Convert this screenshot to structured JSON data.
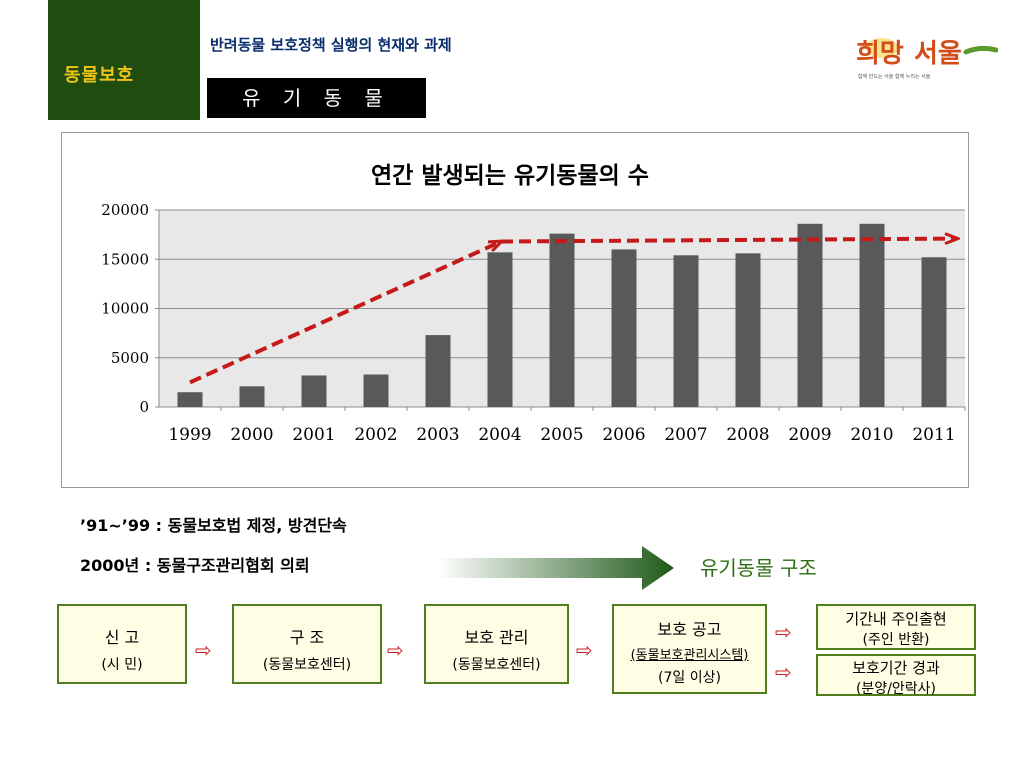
{
  "header": {
    "side_tab": "동물보호",
    "title": "반려동물 보호정책 실행의 현재와 과제",
    "section": "유 기 동 물"
  },
  "logo": {
    "name": "희망서울",
    "tagline": "함께 만드는 서울 함께 누리는 서울"
  },
  "chart_data": {
    "type": "bar",
    "title": "연간 발생되는 유기동물의 수",
    "categories": [
      "1999",
      "2000",
      "2001",
      "2002",
      "2003",
      "2004",
      "2005",
      "2006",
      "2007",
      "2008",
      "2009",
      "2010",
      "2011"
    ],
    "values": [
      1500,
      2100,
      3200,
      3300,
      7300,
      15700,
      17600,
      16000,
      15400,
      15600,
      18600,
      18600,
      15200
    ],
    "ylim": [
      0,
      20000
    ],
    "yticks": [
      0,
      5000,
      10000,
      15000,
      20000
    ],
    "ytick_labels": [
      "0",
      "5000",
      "10000",
      "15000",
      "20000"
    ],
    "grid": true,
    "bar_color": "#595959",
    "plot_bg": "#e8e8e8",
    "trend_color": "#c41a1a"
  },
  "notes": {
    "line1": "’91~’99 : 동물보호법 제정, 방견단속",
    "line2": "2000년 : 동물구조관리협회 의뢰",
    "rescue_label": "유기동물  구조"
  },
  "flow": {
    "report": {
      "line1": "신   고",
      "line2": "(시   민)"
    },
    "rescue": {
      "line1": "구   조",
      "line2": "(동물보호센터)"
    },
    "care": {
      "line1": "보호  관리",
      "line2": "(동물보호센터)"
    },
    "notice": {
      "line1": "보호  공고",
      "line2": "(동물보호관리시스템)",
      "line3": "(7일 이상)"
    },
    "owner": {
      "line1": "기간내  주인출현",
      "line2": "(주인  반환)"
    },
    "expire": {
      "line1": "보호기간  경과",
      "line2": "(분양/안락사)"
    },
    "arrow_glyph": "⇨"
  }
}
